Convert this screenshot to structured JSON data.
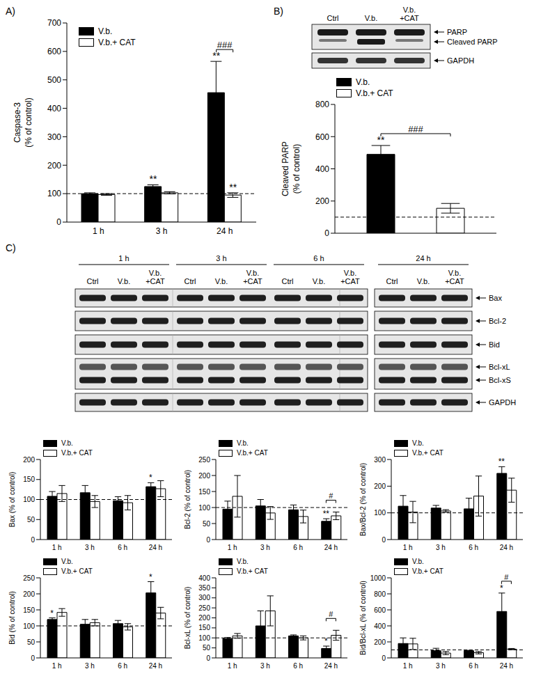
{
  "panel_labels": [
    "A)",
    "B)",
    "C)"
  ],
  "chart_data": [
    {
      "type": "bar",
      "categories": [
        "1 h",
        "3 h",
        "24 h"
      ],
      "y_label": [
        "Caspase-3",
        "(% of control)"
      ],
      "ylim": [
        0,
        700
      ],
      "yticks": [
        0,
        100,
        200,
        300,
        400,
        500,
        600,
        700
      ],
      "reference_line": 100,
      "legend": "upper left",
      "series": [
        {
          "name": "V.b.",
          "color": "#000000",
          "values": [
            100,
            125,
            455
          ],
          "errors": [
            3,
            6,
            110
          ],
          "significance": [
            null,
            "**",
            "**"
          ]
        },
        {
          "name": "V.b.+ CAT",
          "color": "#ffffff",
          "values": [
            97,
            103,
            95
          ],
          "errors": [
            3,
            4,
            8
          ],
          "significance": [
            null,
            null,
            "**"
          ]
        }
      ],
      "comparison": [
        null,
        null,
        "###"
      ]
    },
    {
      "type": "bar",
      "categories": [
        null
      ],
      "y_label": [
        "Cleaved PARP",
        "(% of control)"
      ],
      "ylim": [
        0,
        800
      ],
      "yticks": [
        0,
        200,
        400,
        600,
        800
      ],
      "reference_line": 100,
      "legend": "upper left",
      "series": [
        {
          "name": "V.b.",
          "color": "#000000",
          "values": [
            490
          ],
          "errors": [
            55
          ],
          "significance": [
            "**"
          ]
        },
        {
          "name": "V.b.+ CAT",
          "color": "#ffffff",
          "values": [
            155
          ],
          "errors": [
            30
          ]
        }
      ],
      "comparison": [
        "###"
      ]
    },
    {
      "type": "bar",
      "categories": [
        "1 h",
        "3 h",
        "6 h",
        "24 h"
      ],
      "y_label": [
        "Bax (% of control)"
      ],
      "ylim": [
        0,
        200
      ],
      "yticks": [
        0,
        50,
        100,
        150,
        200
      ],
      "reference_line": 100,
      "legend": "upper left",
      "series": [
        {
          "name": "V.b.",
          "color": "#000000",
          "values": [
            108,
            117,
            97,
            132
          ],
          "errors": [
            12,
            18,
            10,
            10
          ],
          "significance": [
            null,
            null,
            null,
            "*"
          ]
        },
        {
          "name": "V.b.+ CAT",
          "color": "#ffffff",
          "values": [
            115,
            95,
            92,
            127
          ],
          "errors": [
            20,
            15,
            18,
            20
          ]
        }
      ]
    },
    {
      "type": "bar",
      "categories": [
        "1 h",
        "3 h",
        "6 h",
        "24 h"
      ],
      "y_label": [
        "Bcl-2 (% of control)"
      ],
      "ylim": [
        0,
        250
      ],
      "yticks": [
        0,
        50,
        100,
        150,
        200,
        250
      ],
      "reference_line": 100,
      "legend": "upper left",
      "series": [
        {
          "name": "V.b.",
          "color": "#000000",
          "values": [
            95,
            105,
            93,
            57
          ],
          "errors": [
            25,
            20,
            15,
            8
          ],
          "significance": [
            null,
            null,
            null,
            "**"
          ]
        },
        {
          "name": "V.b.+ CAT",
          "color": "#ffffff",
          "values": [
            135,
            83,
            72,
            74
          ],
          "errors": [
            65,
            20,
            20,
            12
          ]
        }
      ],
      "comparison": [
        null,
        null,
        null,
        "#"
      ]
    },
    {
      "type": "bar",
      "categories": [
        "1 h",
        "3 h",
        "6 h",
        "24 h"
      ],
      "y_label": [
        "Bax/Bcl-2 (% of control)"
      ],
      "ylim": [
        0,
        300
      ],
      "yticks": [
        0,
        100,
        200,
        300
      ],
      "reference_line": 100,
      "legend": "upper left",
      "series": [
        {
          "name": "V.b.",
          "color": "#000000",
          "values": [
            125,
            118,
            115,
            248
          ],
          "errors": [
            40,
            10,
            40,
            25
          ],
          "significance": [
            null,
            null,
            null,
            "**"
          ]
        },
        {
          "name": "V.b.+ CAT",
          "color": "#ffffff",
          "values": [
            103,
            107,
            163,
            185
          ],
          "errors": [
            40,
            5,
            75,
            45
          ]
        }
      ]
    },
    {
      "type": "bar",
      "categories": [
        "1 h",
        "3 h",
        "6 h",
        "24 h"
      ],
      "y_label": [
        "Bid (% of control)"
      ],
      "ylim": [
        0,
        250
      ],
      "yticks": [
        0,
        50,
        100,
        150,
        200,
        250
      ],
      "reference_line": 100,
      "legend": "upper left",
      "series": [
        {
          "name": "V.b.",
          "color": "#000000",
          "values": [
            120,
            105,
            107,
            203
          ],
          "errors": [
            5,
            15,
            10,
            35
          ],
          "significance": [
            "*",
            null,
            null,
            "*"
          ]
        },
        {
          "name": "V.b.+ CAT",
          "color": "#ffffff",
          "values": [
            142,
            110,
            97,
            140
          ],
          "errors": [
            12,
            10,
            10,
            18
          ]
        }
      ]
    },
    {
      "type": "bar",
      "categories": [
        "1 h",
        "3 h",
        "6 h",
        "24 h"
      ],
      "y_label": [
        "Bcl-xL (% of control)"
      ],
      "ylim": [
        0,
        400
      ],
      "yticks": [
        0,
        50,
        100,
        150,
        200,
        250,
        300,
        350,
        400
      ],
      "reference_line": 100,
      "legend": "upper left",
      "series": [
        {
          "name": "V.b.",
          "color": "#000000",
          "values": [
            97,
            160,
            110,
            47
          ],
          "errors": [
            5,
            75,
            5,
            12
          ],
          "significance": [
            null,
            null,
            null,
            "*"
          ]
        },
        {
          "name": "V.b.+ CAT",
          "color": "#ffffff",
          "values": [
            110,
            235,
            100,
            113
          ],
          "errors": [
            12,
            75,
            10,
            25
          ]
        }
      ],
      "comparison": [
        null,
        null,
        null,
        "#"
      ]
    },
    {
      "type": "bar",
      "categories": [
        "1 h",
        "3 h",
        "6 h",
        "24 h"
      ],
      "y_label": [
        "Bid/Bcl-xL (% of control)"
      ],
      "ylim": [
        0,
        1000
      ],
      "yticks": [
        0,
        200,
        400,
        600,
        800,
        1000
      ],
      "reference_line": 100,
      "legend": "upper left",
      "series": [
        {
          "name": "V.b.",
          "color": "#000000",
          "values": [
            180,
            90,
            90,
            580
          ],
          "errors": [
            70,
            30,
            5,
            230
          ],
          "significance": [
            null,
            null,
            null,
            "*"
          ]
        },
        {
          "name": "V.b.+ CAT",
          "color": "#ffffff",
          "values": [
            175,
            60,
            65,
            110
          ],
          "errors": [
            70,
            20,
            15,
            8
          ]
        }
      ],
      "comparison": [
        null,
        null,
        null,
        "#"
      ]
    }
  ],
  "blots": {
    "B": {
      "lanes": [
        [
          "Ctrl"
        ],
        [
          "V.b."
        ],
        [
          "V.b.",
          "+CAT"
        ]
      ],
      "bands": [
        "PARP",
        "Cleaved PARP",
        "GAPDH"
      ]
    },
    "C": {
      "timepoints": [
        "1 h",
        "3 h",
        "6 h",
        "24 h"
      ],
      "lanes": [
        [
          "Ctrl"
        ],
        [
          "V.b."
        ],
        [
          "V.b.",
          "+CAT"
        ]
      ],
      "bands": [
        "Bax",
        "Bcl-2",
        "Bid",
        "Bcl-xL",
        "Bcl-xS",
        "GAPDH"
      ]
    }
  }
}
